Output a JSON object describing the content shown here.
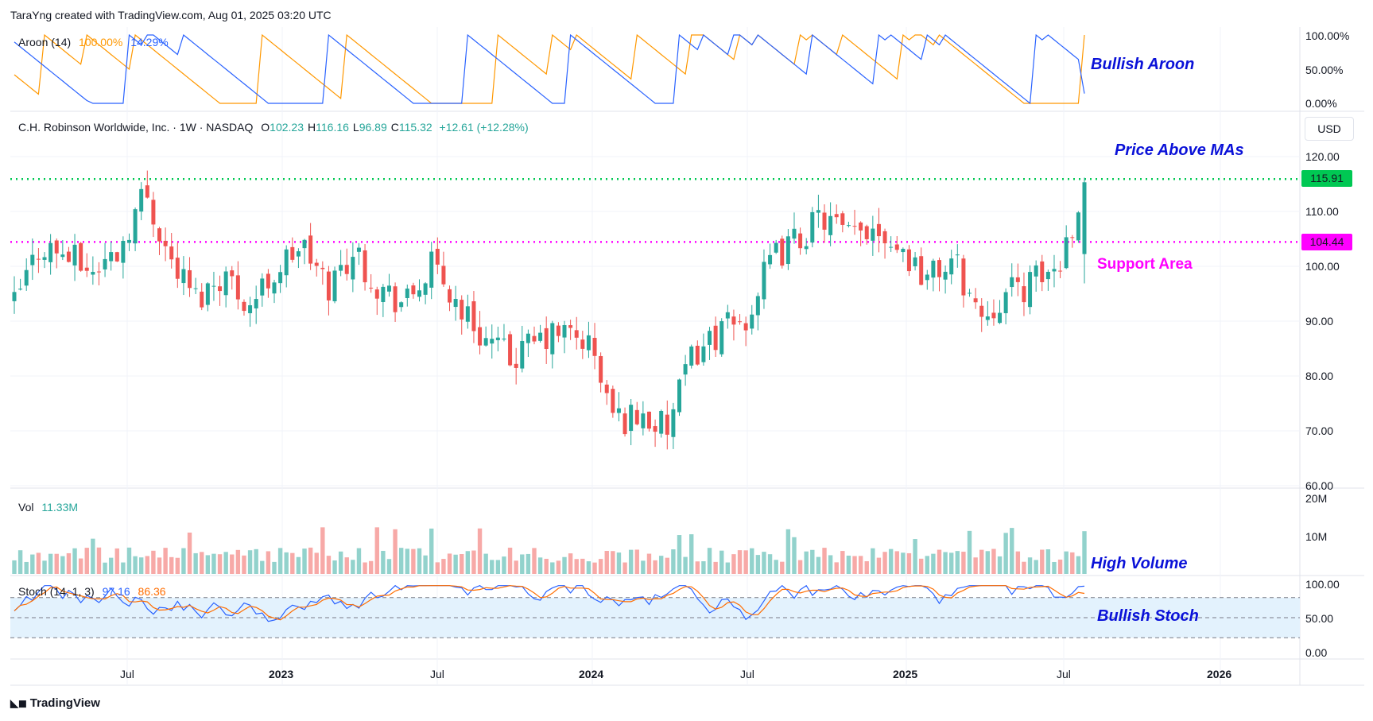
{
  "header": {
    "credit": "TaraYng created with TradingView.com, Aug 01, 2025 03:20 UTC"
  },
  "footer": {
    "brand": "TradingView"
  },
  "colors": {
    "up": "#26a69a",
    "down": "#ef5350",
    "vol_up": "#92d2cc",
    "vol_down": "#f7a9a7",
    "aroon_up": "#ff9800",
    "aroon_down": "#2962ff",
    "stoch_k": "#2962ff",
    "stoch_d": "#ff6d00",
    "resistance": "#00c853",
    "support": "#ff00ff",
    "annotation_blue": "#0a11d8",
    "annotation_magenta": "#ff00ff",
    "band": "#e3f2fd"
  },
  "price_pane": {
    "symbol_line": "C.H. Robinson Worldwide, Inc. · 1W · NASDAQ",
    "ohlc": [
      {
        "k": "O",
        "v": "102.23"
      },
      {
        "k": "H",
        "v": "116.16"
      },
      {
        "k": "L",
        "v": "96.89"
      },
      {
        "k": "C",
        "v": "115.32"
      }
    ],
    "change": "+12.61 (+12.28%)",
    "currency": "USD",
    "resistance_label": "115.91",
    "support_label": "104.44"
  },
  "annotations": {
    "aroon": "Bullish Aroon",
    "price": "Price Above MAs",
    "support": "Support Area",
    "volume": "High Volume",
    "stoch": "Bullish Stoch"
  },
  "aroon_pane": {
    "title": "Aroon (14)",
    "up_value": "100.00%",
    "down_value": "14.29%",
    "axis": [
      "100.00%",
      "50.00%",
      "0.00%"
    ]
  },
  "volume_pane": {
    "title": "Vol",
    "value": "11.33M",
    "axis": [
      "20M",
      "10M"
    ]
  },
  "stoch_pane": {
    "title": "Stoch (14, 1, 3)",
    "k_value": "97.16",
    "d_value": "86.36",
    "axis": [
      "100.00",
      "50.00",
      "0.00"
    ]
  },
  "price_axis": [
    "120.00",
    "110.00",
    "100.00",
    "90.00",
    "80.00",
    "70.00",
    "60.00"
  ],
  "x_axis": [
    {
      "label": "Jul",
      "bold": false
    },
    {
      "label": "2023",
      "bold": true
    },
    {
      "label": "Jul",
      "bold": false
    },
    {
      "label": "2024",
      "bold": true
    },
    {
      "label": "Jul",
      "bold": false
    },
    {
      "label": "2025",
      "bold": true
    },
    {
      "label": "Jul",
      "bold": false
    },
    {
      "label": "2026",
      "bold": true
    }
  ],
  "chart_data": {
    "type": "candlestick",
    "interval": "1W",
    "ylim": [
      60,
      125
    ],
    "resistance": 115.91,
    "support": 104.44,
    "close_path": [
      {
        "date": "2022-03",
        "close": 93
      },
      {
        "date": "2022-04",
        "close": 104
      },
      {
        "date": "2022-05",
        "close": 102
      },
      {
        "date": "2022-06",
        "close": 99
      },
      {
        "date": "2022-07",
        "close": 103
      },
      {
        "date": "2022-08",
        "close": 114
      },
      {
        "date": "2022-09",
        "close": 101
      },
      {
        "date": "2022-10",
        "close": 94
      },
      {
        "date": "2022-11",
        "close": 99
      },
      {
        "date": "2022-12",
        "close": 93
      },
      {
        "date": "2023-01",
        "close": 99
      },
      {
        "date": "2023-02",
        "close": 104
      },
      {
        "date": "2023-03",
        "close": 96
      },
      {
        "date": "2023-04",
        "close": 103
      },
      {
        "date": "2023-05",
        "close": 96
      },
      {
        "date": "2023-06",
        "close": 93
      },
      {
        "date": "2023-07",
        "close": 100
      },
      {
        "date": "2023-08",
        "close": 93
      },
      {
        "date": "2023-09",
        "close": 87
      },
      {
        "date": "2023-10",
        "close": 83
      },
      {
        "date": "2023-11",
        "close": 86
      },
      {
        "date": "2023-12",
        "close": 88
      },
      {
        "date": "2024-01",
        "close": 86
      },
      {
        "date": "2024-02",
        "close": 72
      },
      {
        "date": "2024-03",
        "close": 73
      },
      {
        "date": "2024-04",
        "close": 70
      },
      {
        "date": "2024-05",
        "close": 84
      },
      {
        "date": "2024-06",
        "close": 88
      },
      {
        "date": "2024-07",
        "close": 90
      },
      {
        "date": "2024-08",
        "close": 101
      },
      {
        "date": "2024-09",
        "close": 105
      },
      {
        "date": "2024-10",
        "close": 109
      },
      {
        "date": "2024-11",
        "close": 105
      },
      {
        "date": "2024-12",
        "close": 108
      },
      {
        "date": "2025-01",
        "close": 103
      },
      {
        "date": "2025-02",
        "close": 98
      },
      {
        "date": "2025-03",
        "close": 101
      },
      {
        "date": "2025-04",
        "close": 91
      },
      {
        "date": "2025-05",
        "close": 95
      },
      {
        "date": "2025-06",
        "close": 97
      },
      {
        "date": "2025-07",
        "close": 100
      },
      {
        "date": "2025-08",
        "close": 115.32
      }
    ],
    "last_candle": {
      "open": 102.23,
      "high": 116.16,
      "low": 96.89,
      "close": 115.32
    },
    "volume_last_m": 11.33,
    "aroon": {
      "up": 100.0,
      "down": 14.29
    },
    "stoch": {
      "k": 97.16,
      "d": 86.36
    }
  }
}
